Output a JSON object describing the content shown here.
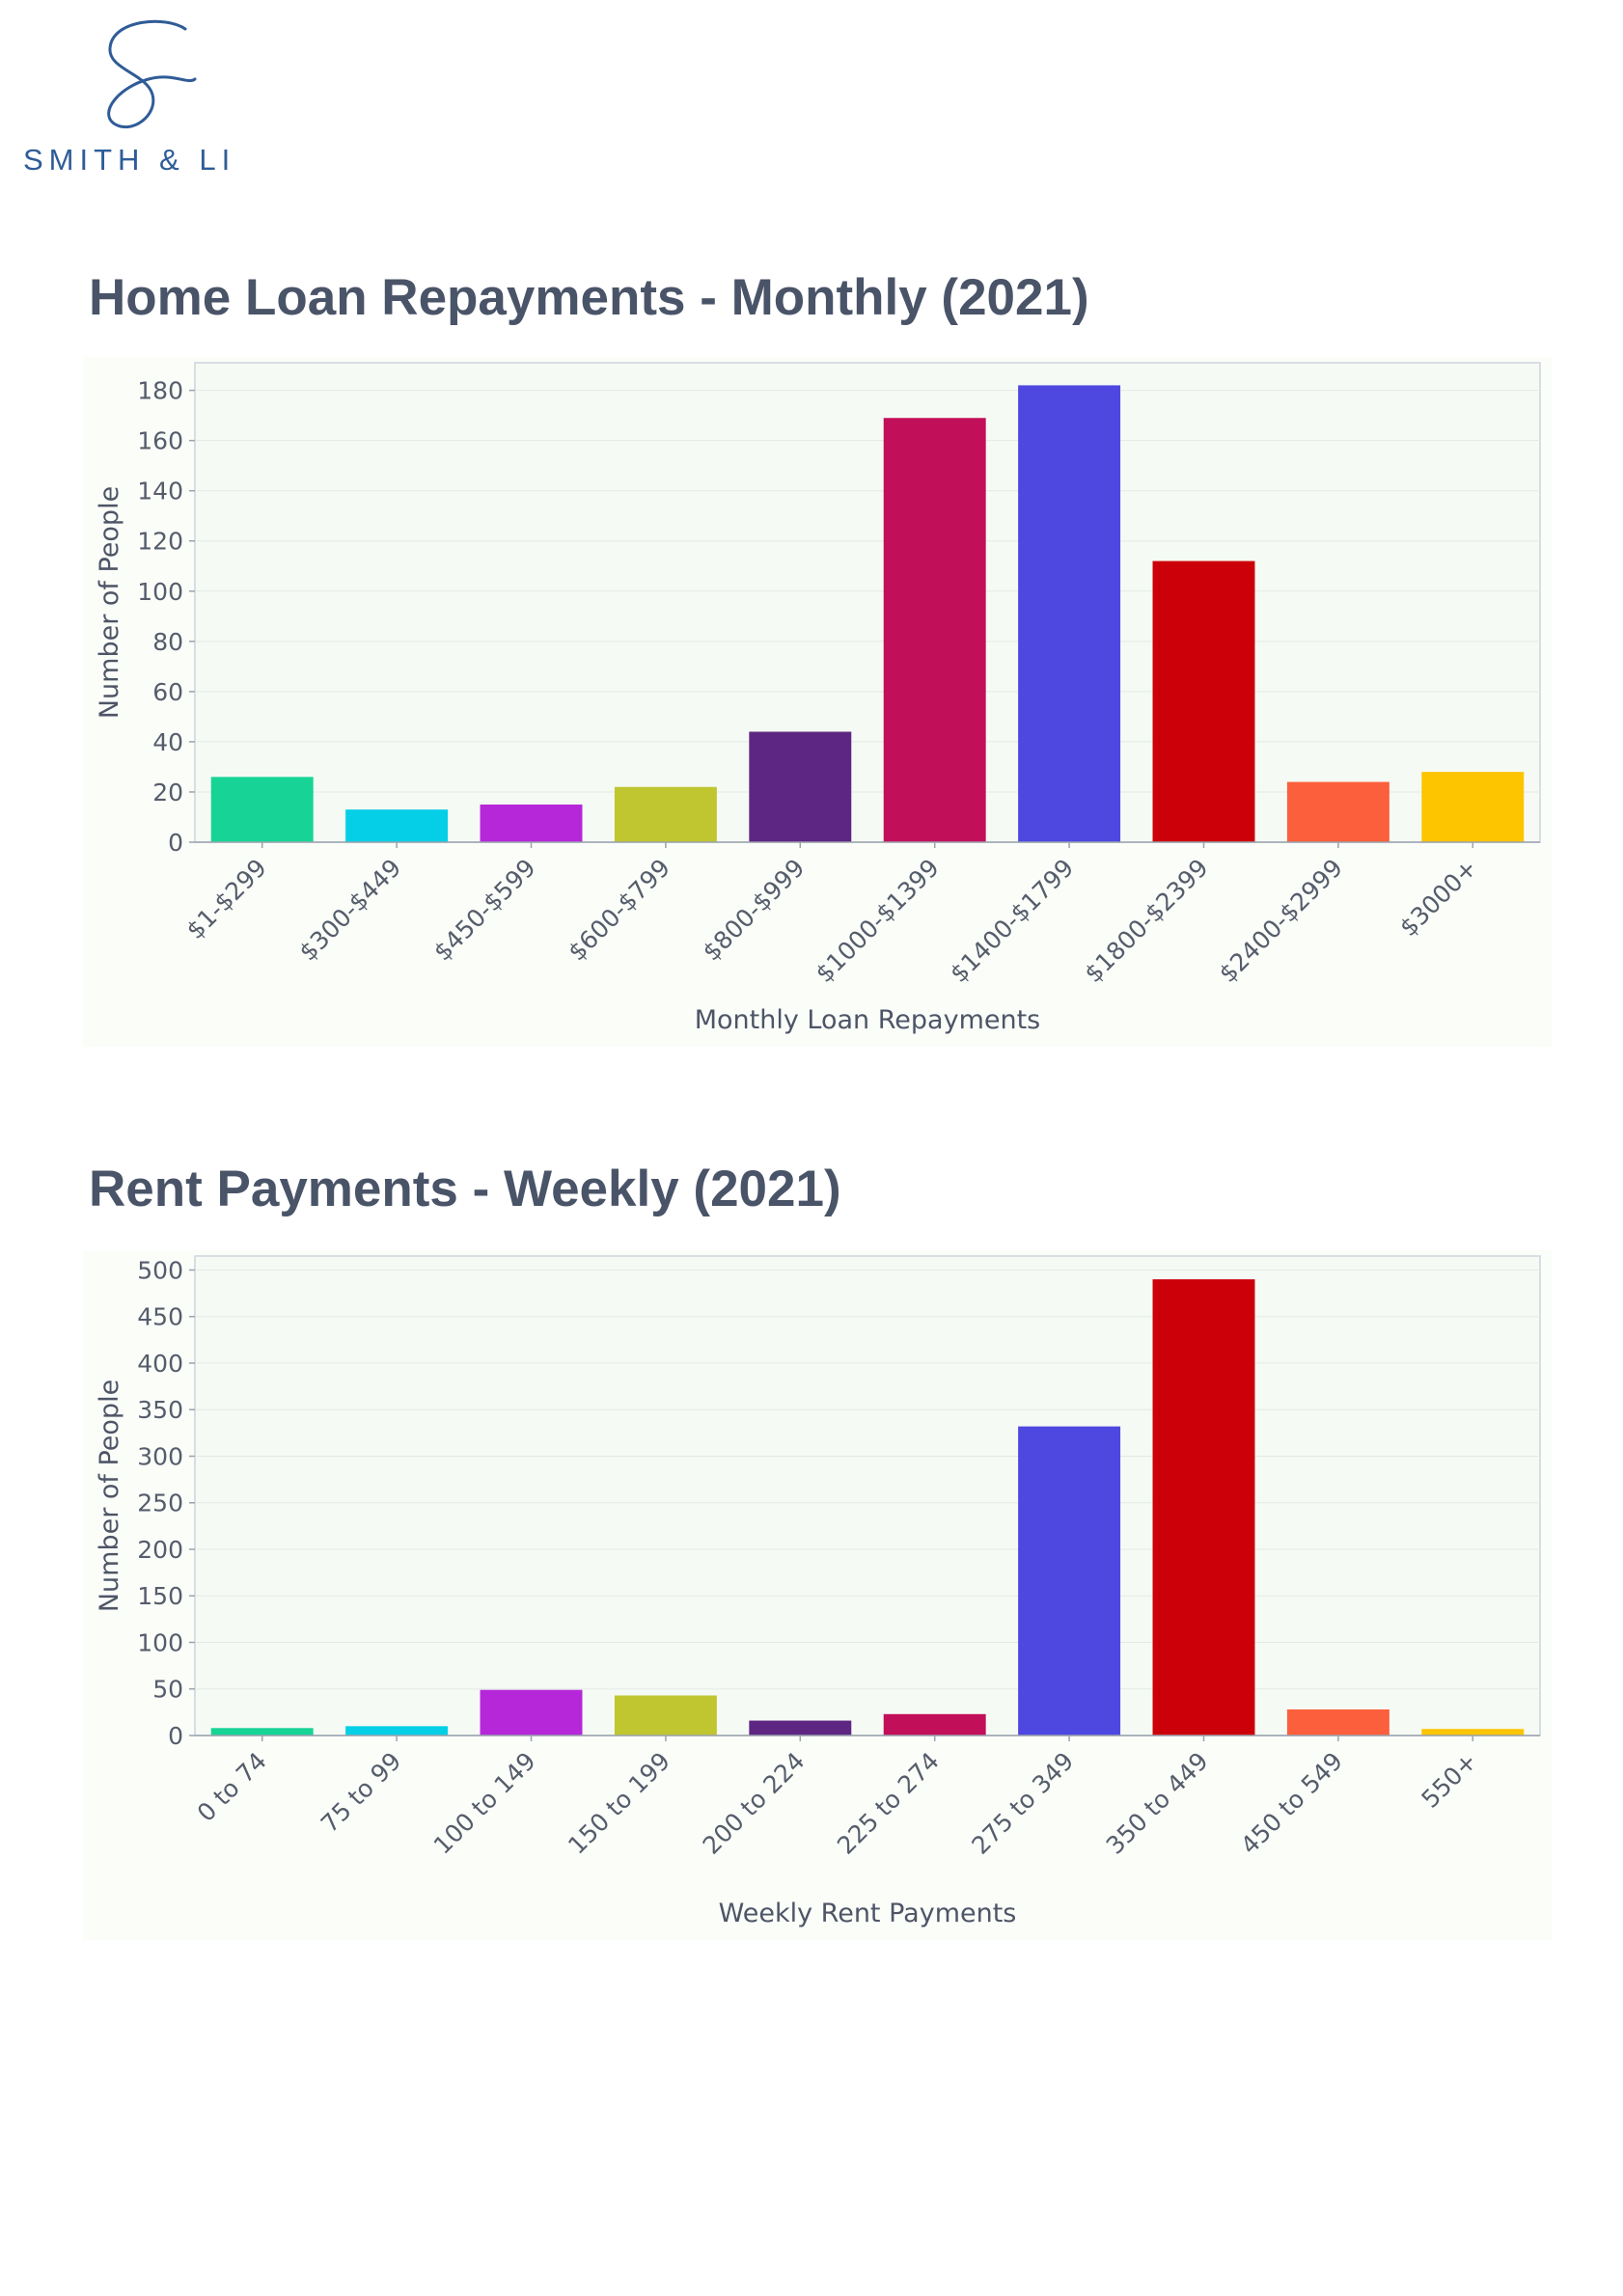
{
  "logo": {
    "text": "SMITH & LI"
  },
  "charts_titles": [
    "Home Loan Repayments - Monthly (2021)",
    "Rent Payments - Weekly (2021)"
  ],
  "colors": [
    "#17d496",
    "#05cfe7",
    "#b527d8",
    "#bfc630",
    "#5e2683",
    "#c20f5a",
    "#4e48e0",
    "#cc0008",
    "#fc5f3c",
    "#fdc400"
  ],
  "chart_data": [
    {
      "type": "bar",
      "title": "Home Loan Repayments - Monthly (2021)",
      "xlabel": "Monthly Loan Repayments",
      "ylabel": "Number of People",
      "categories": [
        "$1-$299",
        "$300-$449",
        "$450-$599",
        "$600-$799",
        "$800-$999",
        "$1000-$1399",
        "$1400-$1799",
        "$1800-$2399",
        "$2400-$2999",
        "$3000+"
      ],
      "values": [
        26,
        13,
        15,
        22,
        44,
        169,
        182,
        112,
        24,
        28
      ],
      "yticks": [
        0,
        20,
        40,
        60,
        80,
        100,
        120,
        140,
        160,
        180
      ],
      "ylim": [
        0,
        191
      ],
      "grid": true
    },
    {
      "type": "bar",
      "title": "Rent Payments - Weekly (2021)",
      "xlabel": "Weekly Rent Payments",
      "ylabel": "Number of People",
      "categories": [
        "0 to 74",
        "75 to 99",
        "100 to 149",
        "150 to 199",
        "200 to 224",
        "225 to 274",
        "275 to 349",
        "350 to 449",
        "450 to 549",
        "550+"
      ],
      "values": [
        8,
        10,
        49,
        43,
        16,
        23,
        332,
        490,
        28,
        7
      ],
      "yticks": [
        0,
        50,
        100,
        150,
        200,
        250,
        300,
        350,
        400,
        450,
        500
      ],
      "ylim": [
        0,
        515
      ],
      "grid": true
    }
  ]
}
